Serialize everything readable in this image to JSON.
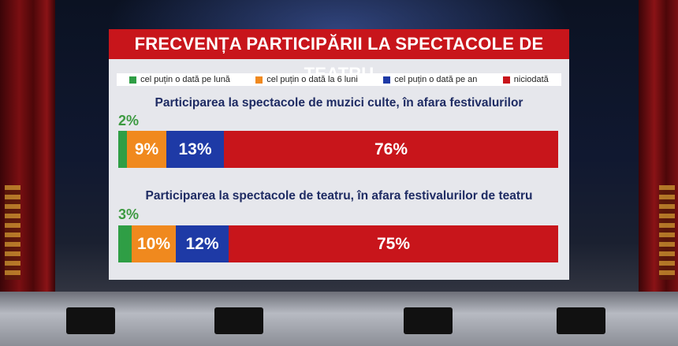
{
  "title": "FRECVENȚA PARTICIPĂRII LA SPECTACOLE DE TEATRU",
  "legend": [
    {
      "label": "cel puțin o dată pe lună",
      "color": "#2f9e45"
    },
    {
      "label": "cel puțin o dată la 6 luni",
      "color": "#f0891e"
    },
    {
      "label": "cel puțin o dată pe an",
      "color": "#1e3aa6"
    },
    {
      "label": "niciodată",
      "color": "#c8151b"
    }
  ],
  "chart_data": {
    "type": "bar",
    "orientation": "horizontal-stacked",
    "title": "FRECVENȚA PARTICIPĂRII LA SPECTACOLE DE TEATRU",
    "unit": "%",
    "series_names": [
      "cel puțin o dată pe lună",
      "cel puțin o dată la 6 luni",
      "cel puțin o dată pe an",
      "niciodată"
    ],
    "colors": [
      "#2f9e45",
      "#f0891e",
      "#1e3aa6",
      "#c8151b"
    ],
    "categories": [
      "Participarea la spectacole de muzici culte, în afara festivalurilor",
      "Participarea la spectacole de teatru, în afara festivalurilor de teatru"
    ],
    "values": [
      [
        2,
        9,
        13,
        76
      ],
      [
        3,
        10,
        12,
        75
      ]
    ],
    "labels": [
      [
        "2%",
        "9%",
        "13%",
        "76%"
      ],
      [
        "3%",
        "10%",
        "12%",
        "75%"
      ]
    ]
  }
}
